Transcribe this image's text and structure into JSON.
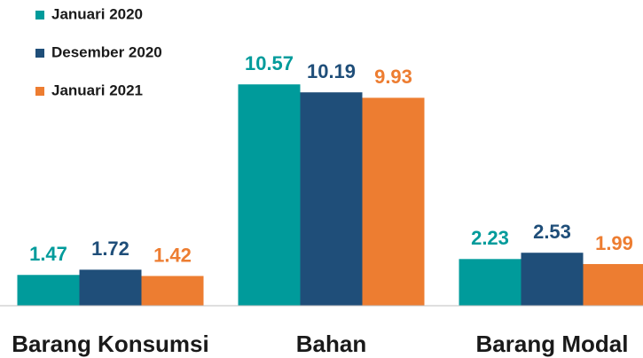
{
  "chart_data": {
    "type": "bar",
    "categories": [
      "Barang Konsumsi",
      "Bahan",
      "Barang Modal"
    ],
    "series": [
      {
        "name": "Januari 2020",
        "color": "#009b9b",
        "values": [
          1.47,
          10.57,
          2.23
        ]
      },
      {
        "name": "Desember 2020",
        "color": "#1f4e79",
        "values": [
          1.72,
          10.19,
          2.53
        ]
      },
      {
        "name": "Januari 2021",
        "color": "#ed7d31",
        "values": [
          1.42,
          9.93,
          1.99
        ]
      }
    ],
    "ylim": [
      0,
      14.6
    ],
    "legend": "top-left"
  }
}
